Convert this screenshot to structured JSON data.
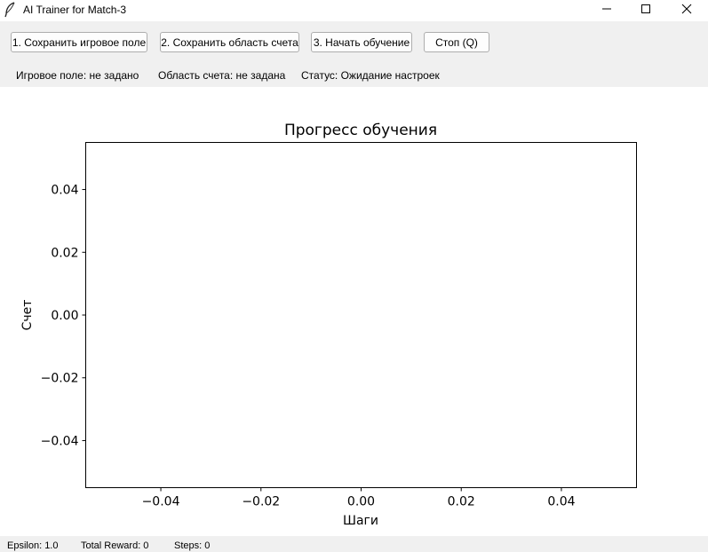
{
  "window": {
    "title": "AI Trainer for Match-3",
    "icon": "feather-icon"
  },
  "toolbar": {
    "buttons": [
      {
        "label": "1. Сохранить игровое поле"
      },
      {
        "label": "2. Сохранить область счета"
      },
      {
        "label": "3. Начать обучение"
      },
      {
        "label": "Стоп (Q)"
      }
    ]
  },
  "status": {
    "field": "Игровое поле: не задано",
    "score_area": "Область счета: не задана",
    "state": "Статус: Ожидание настроек"
  },
  "chart_data": {
    "type": "line",
    "title": "Прогресс обучения",
    "xlabel": "Шаги",
    "ylabel": "Счет",
    "xlim": [
      -0.055,
      0.055
    ],
    "ylim": [
      -0.055,
      0.055
    ],
    "xticks": [
      "−0.04",
      "−0.02",
      "0.00",
      "0.02",
      "0.04"
    ],
    "yticks": [
      "0.04",
      "0.02",
      "0.00",
      "−0.02",
      "−0.04"
    ],
    "series": [],
    "grid": false
  },
  "footer": {
    "epsilon": "Epsilon: 1.0",
    "reward": "Total Reward: 0",
    "steps": "Steps: 0"
  }
}
